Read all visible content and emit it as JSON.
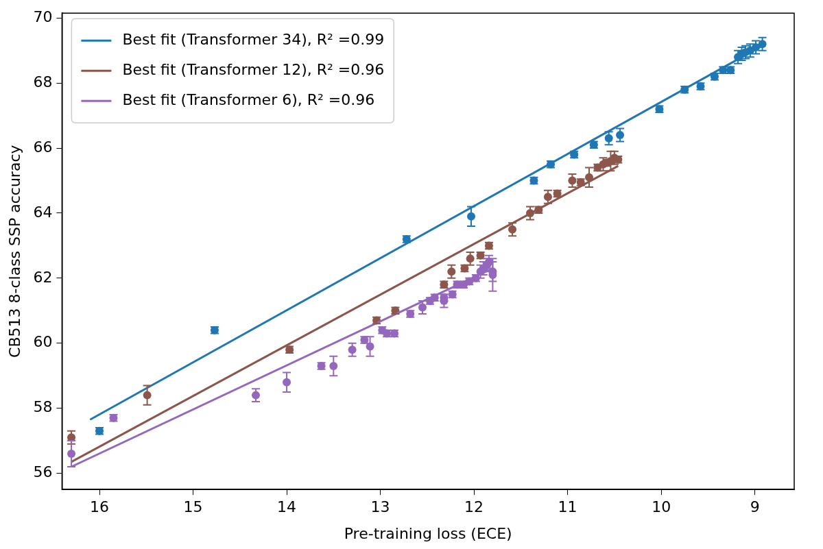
{
  "chart_data": {
    "type": "scatter",
    "x_label": "Pre-training loss (ECE)",
    "y_label": "CB513 8-class SSP accuracy",
    "xlim": [
      16.4,
      8.58
    ],
    "ylim": [
      55.5,
      70.15
    ],
    "xticks": [
      16,
      15,
      14,
      13,
      12,
      11,
      10,
      9
    ],
    "yticks": [
      56,
      58,
      60,
      62,
      64,
      66,
      68,
      70
    ],
    "grid": false,
    "legend": "upper left",
    "series": [
      {
        "name": "Best fit (Transformer 34), R² =0.99",
        "color": "#1f77b4",
        "marker": "circle",
        "x": [
          16.0,
          14.77,
          12.72,
          12.03,
          11.36,
          11.18,
          10.93,
          10.72,
          10.56,
          10.44,
          10.02,
          9.75,
          9.58,
          9.43,
          9.34,
          9.26,
          9.18,
          9.14,
          9.1,
          9.05,
          8.99,
          8.92
        ],
        "values": [
          57.3,
          60.4,
          63.2,
          63.9,
          65.0,
          65.5,
          65.8,
          66.1,
          66.3,
          66.4,
          67.2,
          67.8,
          67.9,
          68.2,
          68.4,
          68.4,
          68.8,
          68.9,
          68.95,
          69.0,
          69.1,
          69.2
        ],
        "errors": [
          0.1,
          0.1,
          0.1,
          0.3,
          0.1,
          0.1,
          0.1,
          0.1,
          0.2,
          0.2,
          0.1,
          0.1,
          0.1,
          0.1,
          0.1,
          0.1,
          0.2,
          0.2,
          0.2,
          0.2,
          0.2,
          0.2
        ],
        "fit": {
          "x": [
            16.1,
            8.92
          ],
          "values": [
            57.65,
            69.15
          ]
        }
      },
      {
        "name": "Best fit (Transformer 12), R² =0.96",
        "color": "#8c564b",
        "marker": "circle",
        "x": [
          16.3,
          15.49,
          13.97,
          13.04,
          12.84,
          12.32,
          12.24,
          12.1,
          12.04,
          11.93,
          11.84,
          11.59,
          11.4,
          11.31,
          11.21,
          11.11,
          10.95,
          10.86,
          10.77,
          10.68,
          10.62,
          10.58,
          10.54,
          10.5,
          10.46
        ],
        "values": [
          57.1,
          58.4,
          59.8,
          60.7,
          61.0,
          61.8,
          62.2,
          62.3,
          62.6,
          62.7,
          63.0,
          63.5,
          64.0,
          64.1,
          64.5,
          64.6,
          65.0,
          64.95,
          65.1,
          65.4,
          65.5,
          65.55,
          65.6,
          65.7,
          65.65
        ],
        "errors": [
          0.2,
          0.3,
          0.1,
          0.1,
          0.1,
          0.1,
          0.2,
          0.1,
          0.2,
          0.1,
          0.1,
          0.2,
          0.2,
          0.1,
          0.2,
          0.1,
          0.2,
          0.1,
          0.3,
          0.1,
          0.2,
          0.1,
          0.3,
          0.2,
          0.1
        ],
        "fit": {
          "x": [
            16.3,
            10.46
          ],
          "values": [
            56.35,
            65.45
          ]
        }
      },
      {
        "name": "Best fit (Transformer 6), R² =0.96",
        "color": "#9467bd",
        "marker": "circle",
        "x": [
          16.3,
          15.85,
          14.33,
          14.0,
          13.63,
          13.5,
          13.3,
          13.17,
          13.11,
          12.98,
          12.93,
          12.85,
          12.68,
          12.55,
          12.47,
          12.42,
          12.32,
          12.32,
          12.23,
          12.18,
          12.11,
          12.05,
          11.98,
          11.93,
          11.9,
          11.86,
          11.84,
          11.8,
          11.8
        ],
        "values": [
          56.6,
          57.7,
          58.4,
          58.8,
          59.3,
          59.3,
          59.8,
          60.1,
          59.9,
          60.4,
          60.3,
          60.3,
          60.9,
          61.1,
          61.3,
          61.4,
          61.4,
          61.3,
          61.5,
          61.8,
          61.8,
          61.9,
          62.0,
          62.2,
          62.3,
          62.4,
          62.5,
          62.2,
          62.1
        ],
        "errors": [
          0.4,
          0.1,
          0.2,
          0.3,
          0.1,
          0.3,
          0.2,
          0.1,
          0.3,
          0.1,
          0.1,
          0.1,
          0.1,
          0.2,
          0.1,
          0.1,
          0.1,
          0.2,
          0.1,
          0.1,
          0.1,
          0.1,
          0.1,
          0.2,
          0.2,
          0.2,
          0.2,
          0.3,
          0.5
        ],
        "fit": {
          "x": [
            16.3,
            11.8
          ],
          "values": [
            56.2,
            62.3
          ]
        }
      }
    ]
  }
}
